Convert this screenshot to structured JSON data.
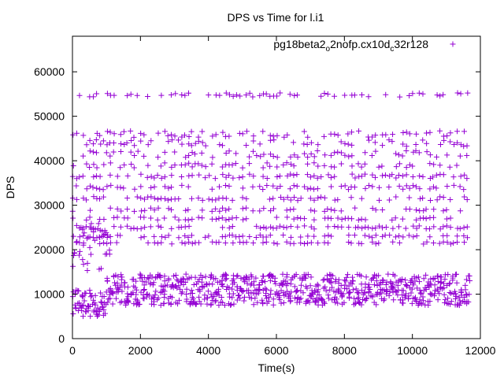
{
  "chart_data": {
    "type": "scatter",
    "title": "DPS vs Time for l.i1",
    "xlabel": "Time(s)",
    "ylabel": "DPS",
    "xlim": [
      0,
      12000
    ],
    "ylim": [
      0,
      68000
    ],
    "x_ticks": [
      0,
      2000,
      4000,
      6000,
      8000,
      10000,
      12000
    ],
    "x_tick_labels": [
      "0",
      "2000",
      "4000",
      "6000",
      "8000",
      "10000",
      "12000"
    ],
    "y_ticks": [
      0,
      10000,
      20000,
      30000,
      40000,
      50000,
      60000
    ],
    "y_tick_labels": [
      "0",
      "10000",
      "20000",
      "30000",
      "40000",
      "50000",
      "60000"
    ],
    "grid": false,
    "legend_position": "top-right",
    "marker": "plus",
    "series": [
      {
        "name": "pg18beta2_o2nofp.cx10d_c32r128",
        "name_parts": {
          "p1": "pg18beta2",
          "sub1": "o",
          "p2": "2nofp.cx10d",
          "sub2": "c",
          "p3": "32r128"
        },
        "color": "#9400d3",
        "x_range": [
          0,
          11600
        ],
        "sample_interval": 100,
        "bands": [
          {
            "level": 54800,
            "spread": 900
          },
          {
            "level": 46000,
            "spread": 1500
          },
          {
            "level": 44000,
            "spread": 1500
          },
          {
            "level": 41500,
            "spread": 1500
          },
          {
            "level": 39000,
            "spread": 1200
          },
          {
            "level": 36500,
            "spread": 1000
          },
          {
            "level": 34000,
            "spread": 1000
          },
          {
            "level": 31500,
            "spread": 900
          },
          {
            "level": 29000,
            "spread": 800
          },
          {
            "level": 27000,
            "spread": 700
          },
          {
            "level": 25000,
            "spread": 700
          },
          {
            "level": 23000,
            "spread": 600
          },
          {
            "level": 21500,
            "spread": 500
          }
        ],
        "low_cluster": {
          "early": {
            "x_range": [
              0,
              1000
            ],
            "y_range": [
              5000,
              11000
            ]
          },
          "steady": {
            "x_range": [
              1000,
              11600
            ],
            "y_range": [
              7500,
              14500
            ]
          }
        },
        "early_mid_cluster": {
          "x_range": [
            0,
            1000
          ],
          "y_range": [
            15000,
            26000
          ]
        }
      }
    ]
  }
}
